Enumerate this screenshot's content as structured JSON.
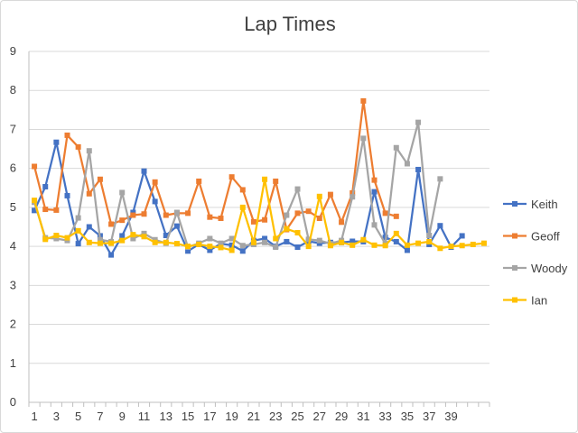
{
  "chart_data": {
    "type": "line",
    "title": "Lap Times",
    "ylim": [
      0,
      9
    ],
    "yticks": [
      0,
      1,
      2,
      3,
      4,
      5,
      6,
      7,
      8,
      9
    ],
    "x": [
      1,
      2,
      3,
      4,
      5,
      6,
      7,
      8,
      9,
      10,
      11,
      12,
      13,
      14,
      15,
      16,
      17,
      18,
      19,
      20,
      21,
      22,
      23,
      24,
      25,
      26,
      27,
      28,
      29,
      30,
      31,
      32,
      33,
      34,
      35,
      36,
      37,
      38,
      39,
      40,
      41,
      42
    ],
    "xtick_labels": [
      "1",
      "3",
      "5",
      "7",
      "9",
      "11",
      "13",
      "15",
      "17",
      "19",
      "21",
      "23",
      "25",
      "27",
      "29",
      "31",
      "33",
      "35",
      "37",
      "39"
    ],
    "legend_position": "right",
    "grid": true,
    "series": [
      {
        "name": "Keith",
        "color": "#4472c4",
        "marker": "square",
        "values": [
          4.92,
          5.53,
          6.67,
          5.3,
          4.07,
          4.5,
          4.27,
          3.78,
          4.27,
          4.87,
          5.93,
          5.15,
          4.28,
          4.52,
          3.88,
          4.05,
          3.9,
          4.07,
          4.03,
          3.88,
          4.15,
          4.2,
          4.0,
          4.12,
          3.98,
          4.13,
          4.08,
          4.1,
          4.1,
          4.13,
          4.12,
          5.4,
          4.23,
          4.12,
          3.9,
          5.97,
          4.05,
          4.53,
          3.98,
          4.27,
          null,
          null
        ]
      },
      {
        "name": "Geoff",
        "color": "#ed7d31",
        "marker": "square",
        "values": [
          6.05,
          4.95,
          4.93,
          6.85,
          6.55,
          5.35,
          5.72,
          4.57,
          4.67,
          4.8,
          4.83,
          5.65,
          4.8,
          4.85,
          4.85,
          5.67,
          4.75,
          4.72,
          5.78,
          5.45,
          4.63,
          4.68,
          5.67,
          4.43,
          4.85,
          4.9,
          4.72,
          5.33,
          4.62,
          5.37,
          7.73,
          5.7,
          4.85,
          4.77,
          null,
          null,
          null,
          null,
          null,
          null,
          null,
          null
        ]
      },
      {
        "name": "Woody",
        "color": "#a5a5a5",
        "marker": "square",
        "values": [
          5.13,
          4.22,
          4.2,
          4.15,
          4.73,
          6.45,
          4.17,
          4.12,
          5.38,
          4.2,
          4.33,
          4.17,
          4.08,
          4.87,
          3.98,
          4.08,
          4.2,
          4.08,
          4.2,
          4.02,
          4.05,
          4.1,
          3.98,
          4.8,
          5.47,
          4.18,
          4.15,
          4.07,
          4.15,
          5.27,
          6.77,
          4.55,
          4.07,
          6.53,
          6.12,
          7.18,
          4.28,
          5.73,
          null,
          null,
          null,
          null
        ]
      },
      {
        "name": "Ian",
        "color": "#ffc000",
        "marker": "square",
        "values": [
          5.18,
          4.18,
          4.28,
          4.22,
          4.4,
          4.1,
          4.08,
          4.08,
          4.15,
          4.3,
          4.25,
          4.1,
          4.1,
          4.07,
          4.0,
          4.05,
          4.0,
          3.97,
          3.9,
          5.0,
          4.1,
          5.72,
          4.2,
          4.45,
          4.35,
          4.0,
          5.28,
          4.02,
          4.1,
          4.03,
          4.17,
          4.03,
          4.02,
          4.33,
          4.03,
          4.08,
          4.12,
          3.95,
          4.0,
          4.02,
          4.05,
          4.08
        ]
      }
    ]
  }
}
